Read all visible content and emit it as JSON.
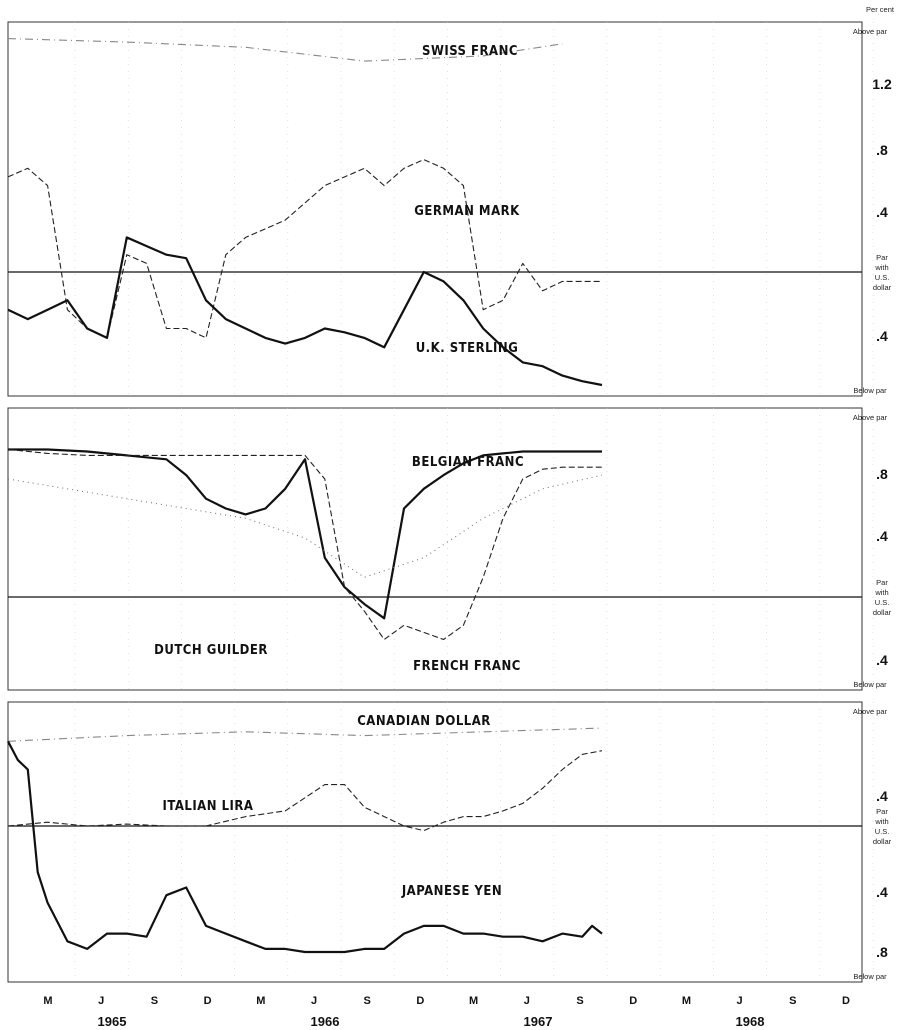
{
  "unit_label": "Per cent",
  "panel_labels": {
    "above_par": "Above par",
    "below_par": "Below par",
    "par_lines": [
      "Par",
      "with",
      "U.S.",
      "dollar"
    ]
  },
  "x_axis": {
    "months": [
      "M",
      "J",
      "S",
      "D",
      "M",
      "J",
      "S",
      "D",
      "M",
      "J",
      "S",
      "D",
      "M",
      "J",
      "S",
      "D"
    ],
    "years": [
      "1965",
      "1966",
      "1967",
      "1968"
    ]
  },
  "chart_data": [
    {
      "type": "line",
      "panel": 1,
      "y_ticks_above": [
        "1.2",
        ".8",
        ".4"
      ],
      "y_ticks_below": [
        ".4"
      ],
      "ylim_above": [
        0,
        1.4
      ],
      "ylim_below": [
        0,
        0.6
      ],
      "series": [
        {
          "name": "SWISS FRANC",
          "style": "dash-dot",
          "x": [
            0,
            6,
            12,
            18,
            24,
            28
          ],
          "y": [
            1.35,
            1.33,
            1.3,
            1.22,
            1.25,
            1.32
          ]
        },
        {
          "name": "GERMAN MARK",
          "style": "dashed",
          "x": [
            0,
            1,
            2,
            3,
            4,
            5,
            6,
            7,
            8,
            9,
            10,
            11,
            12,
            13,
            14,
            15,
            16,
            17,
            18,
            19,
            20,
            21,
            22,
            23,
            24,
            25,
            26,
            27,
            28,
            29,
            30
          ],
          "y": [
            0.55,
            0.6,
            0.5,
            -0.2,
            -0.3,
            -0.35,
            0.1,
            0.05,
            -0.3,
            -0.3,
            -0.35,
            0.1,
            0.2,
            0.25,
            0.3,
            0.4,
            0.5,
            0.55,
            0.6,
            0.5,
            0.6,
            0.65,
            0.6,
            0.5,
            -0.2,
            -0.15,
            0.05,
            -0.1,
            -0.05,
            -0.05,
            -0.05
          ]
        },
        {
          "name": "U.K. STERLING",
          "style": "solid",
          "x": [
            0,
            1,
            2,
            3,
            4,
            5,
            6,
            7,
            8,
            9,
            10,
            11,
            12,
            13,
            14,
            15,
            16,
            17,
            18,
            19,
            20,
            21,
            22,
            23,
            24,
            25,
            26,
            27,
            28,
            29,
            30
          ],
          "y": [
            -0.2,
            -0.25,
            -0.2,
            -0.15,
            -0.3,
            -0.35,
            0.2,
            0.15,
            0.1,
            0.08,
            -0.15,
            -0.25,
            -0.3,
            -0.35,
            -0.38,
            -0.35,
            -0.3,
            -0.32,
            -0.35,
            -0.4,
            -0.2,
            0.0,
            -0.05,
            -0.15,
            -0.3,
            -0.4,
            -0.48,
            -0.5,
            -0.55,
            -0.58,
            -0.6
          ]
        }
      ],
      "series_labels": [
        "SWISS FRANC",
        "GERMAN MARK",
        "U.K. STERLING"
      ]
    },
    {
      "type": "line",
      "panel": 2,
      "y_ticks_above": [
        ".8",
        ".4"
      ],
      "y_ticks_below": [
        ".4"
      ],
      "ylim_above": [
        0,
        0.9
      ],
      "ylim_below": [
        0,
        0.6
      ],
      "series": [
        {
          "name": "BELGIAN FRANC",
          "style": "solid",
          "x": [
            0,
            2,
            4,
            6,
            8,
            9,
            10,
            11,
            12,
            13,
            14,
            15,
            16,
            17,
            18,
            19,
            20,
            21,
            22,
            23,
            24,
            25,
            26,
            27,
            28,
            29,
            30
          ],
          "y": [
            0.75,
            0.75,
            0.74,
            0.72,
            0.7,
            0.62,
            0.5,
            0.45,
            0.42,
            0.45,
            0.55,
            0.7,
            0.2,
            0.05,
            -0.05,
            -0.15,
            0.45,
            0.55,
            0.62,
            0.68,
            0.72,
            0.73,
            0.74,
            0.74,
            0.74,
            0.74,
            0.74
          ]
        },
        {
          "name": "FRENCH FRANC",
          "style": "dashed",
          "x": [
            0,
            2,
            4,
            6,
            8,
            10,
            12,
            14,
            15,
            16,
            17,
            18,
            19,
            20,
            21,
            22,
            23,
            24,
            25,
            26,
            27,
            28,
            29,
            30
          ],
          "y": [
            0.75,
            0.73,
            0.72,
            0.72,
            0.72,
            0.72,
            0.72,
            0.72,
            0.72,
            0.6,
            0.05,
            -0.1,
            -0.3,
            -0.2,
            -0.25,
            -0.3,
            -0.2,
            0.1,
            0.4,
            0.6,
            0.65,
            0.66,
            0.66,
            0.66
          ]
        },
        {
          "name": "DUTCH GUILDER",
          "style": "dotted",
          "x": [
            0,
            3,
            6,
            9,
            12,
            15,
            18,
            21,
            24,
            27,
            30
          ],
          "y": [
            0.6,
            0.55,
            0.5,
            0.45,
            0.4,
            0.3,
            0.1,
            0.2,
            0.4,
            0.55,
            0.62
          ]
        }
      ],
      "series_labels": [
        "BELGIAN FRANC",
        "DUTCH GUILDER",
        "FRENCH FRANC"
      ]
    },
    {
      "type": "line",
      "panel": 3,
      "y_ticks_above": [
        ".4"
      ],
      "y_ticks_below": [
        ".4",
        ".8"
      ],
      "ylim_above": [
        0,
        0.6
      ],
      "ylim_below": [
        0,
        0.95
      ],
      "series": [
        {
          "name": "CANADIAN DOLLAR",
          "style": "dash-dot",
          "x": [
            0,
            6,
            12,
            18,
            24,
            30
          ],
          "y": [
            0.45,
            0.48,
            0.5,
            0.48,
            0.5,
            0.52
          ]
        },
        {
          "name": "ITALIAN LIRA",
          "style": "dashed",
          "x": [
            0,
            2,
            4,
            6,
            8,
            10,
            12,
            14,
            16,
            17,
            18,
            19,
            20,
            21,
            22,
            23,
            24,
            25,
            26,
            27,
            28,
            29,
            30
          ],
          "y": [
            0.0,
            0.02,
            0.0,
            0.01,
            0.0,
            0.0,
            0.05,
            0.08,
            0.22,
            0.22,
            0.1,
            0.05,
            0.0,
            -0.03,
            0.02,
            0.05,
            0.05,
            0.08,
            0.12,
            0.2,
            0.3,
            0.38,
            0.4
          ]
        },
        {
          "name": "JAPANESE YEN",
          "style": "solid",
          "x": [
            0,
            0.5,
            1,
            1.5,
            2,
            3,
            4,
            5,
            6,
            7,
            8,
            9,
            10,
            11,
            12,
            13,
            14,
            15,
            16,
            17,
            18,
            19,
            20,
            21,
            22,
            23,
            24,
            25,
            26,
            27,
            28,
            29,
            29.5,
            30
          ],
          "y": [
            0.45,
            0.35,
            0.3,
            -0.3,
            -0.5,
            -0.75,
            -0.8,
            -0.7,
            -0.7,
            -0.72,
            -0.45,
            -0.4,
            -0.65,
            -0.7,
            -0.75,
            -0.8,
            -0.8,
            -0.82,
            -0.82,
            -0.82,
            -0.8,
            -0.8,
            -0.7,
            -0.65,
            -0.65,
            -0.7,
            -0.7,
            -0.72,
            -0.72,
            -0.75,
            -0.7,
            -0.72,
            -0.65,
            -0.7
          ]
        }
      ],
      "series_labels": [
        "CANADIAN DOLLAR",
        "ITALIAN LIRA",
        "JAPANESE YEN"
      ]
    }
  ]
}
